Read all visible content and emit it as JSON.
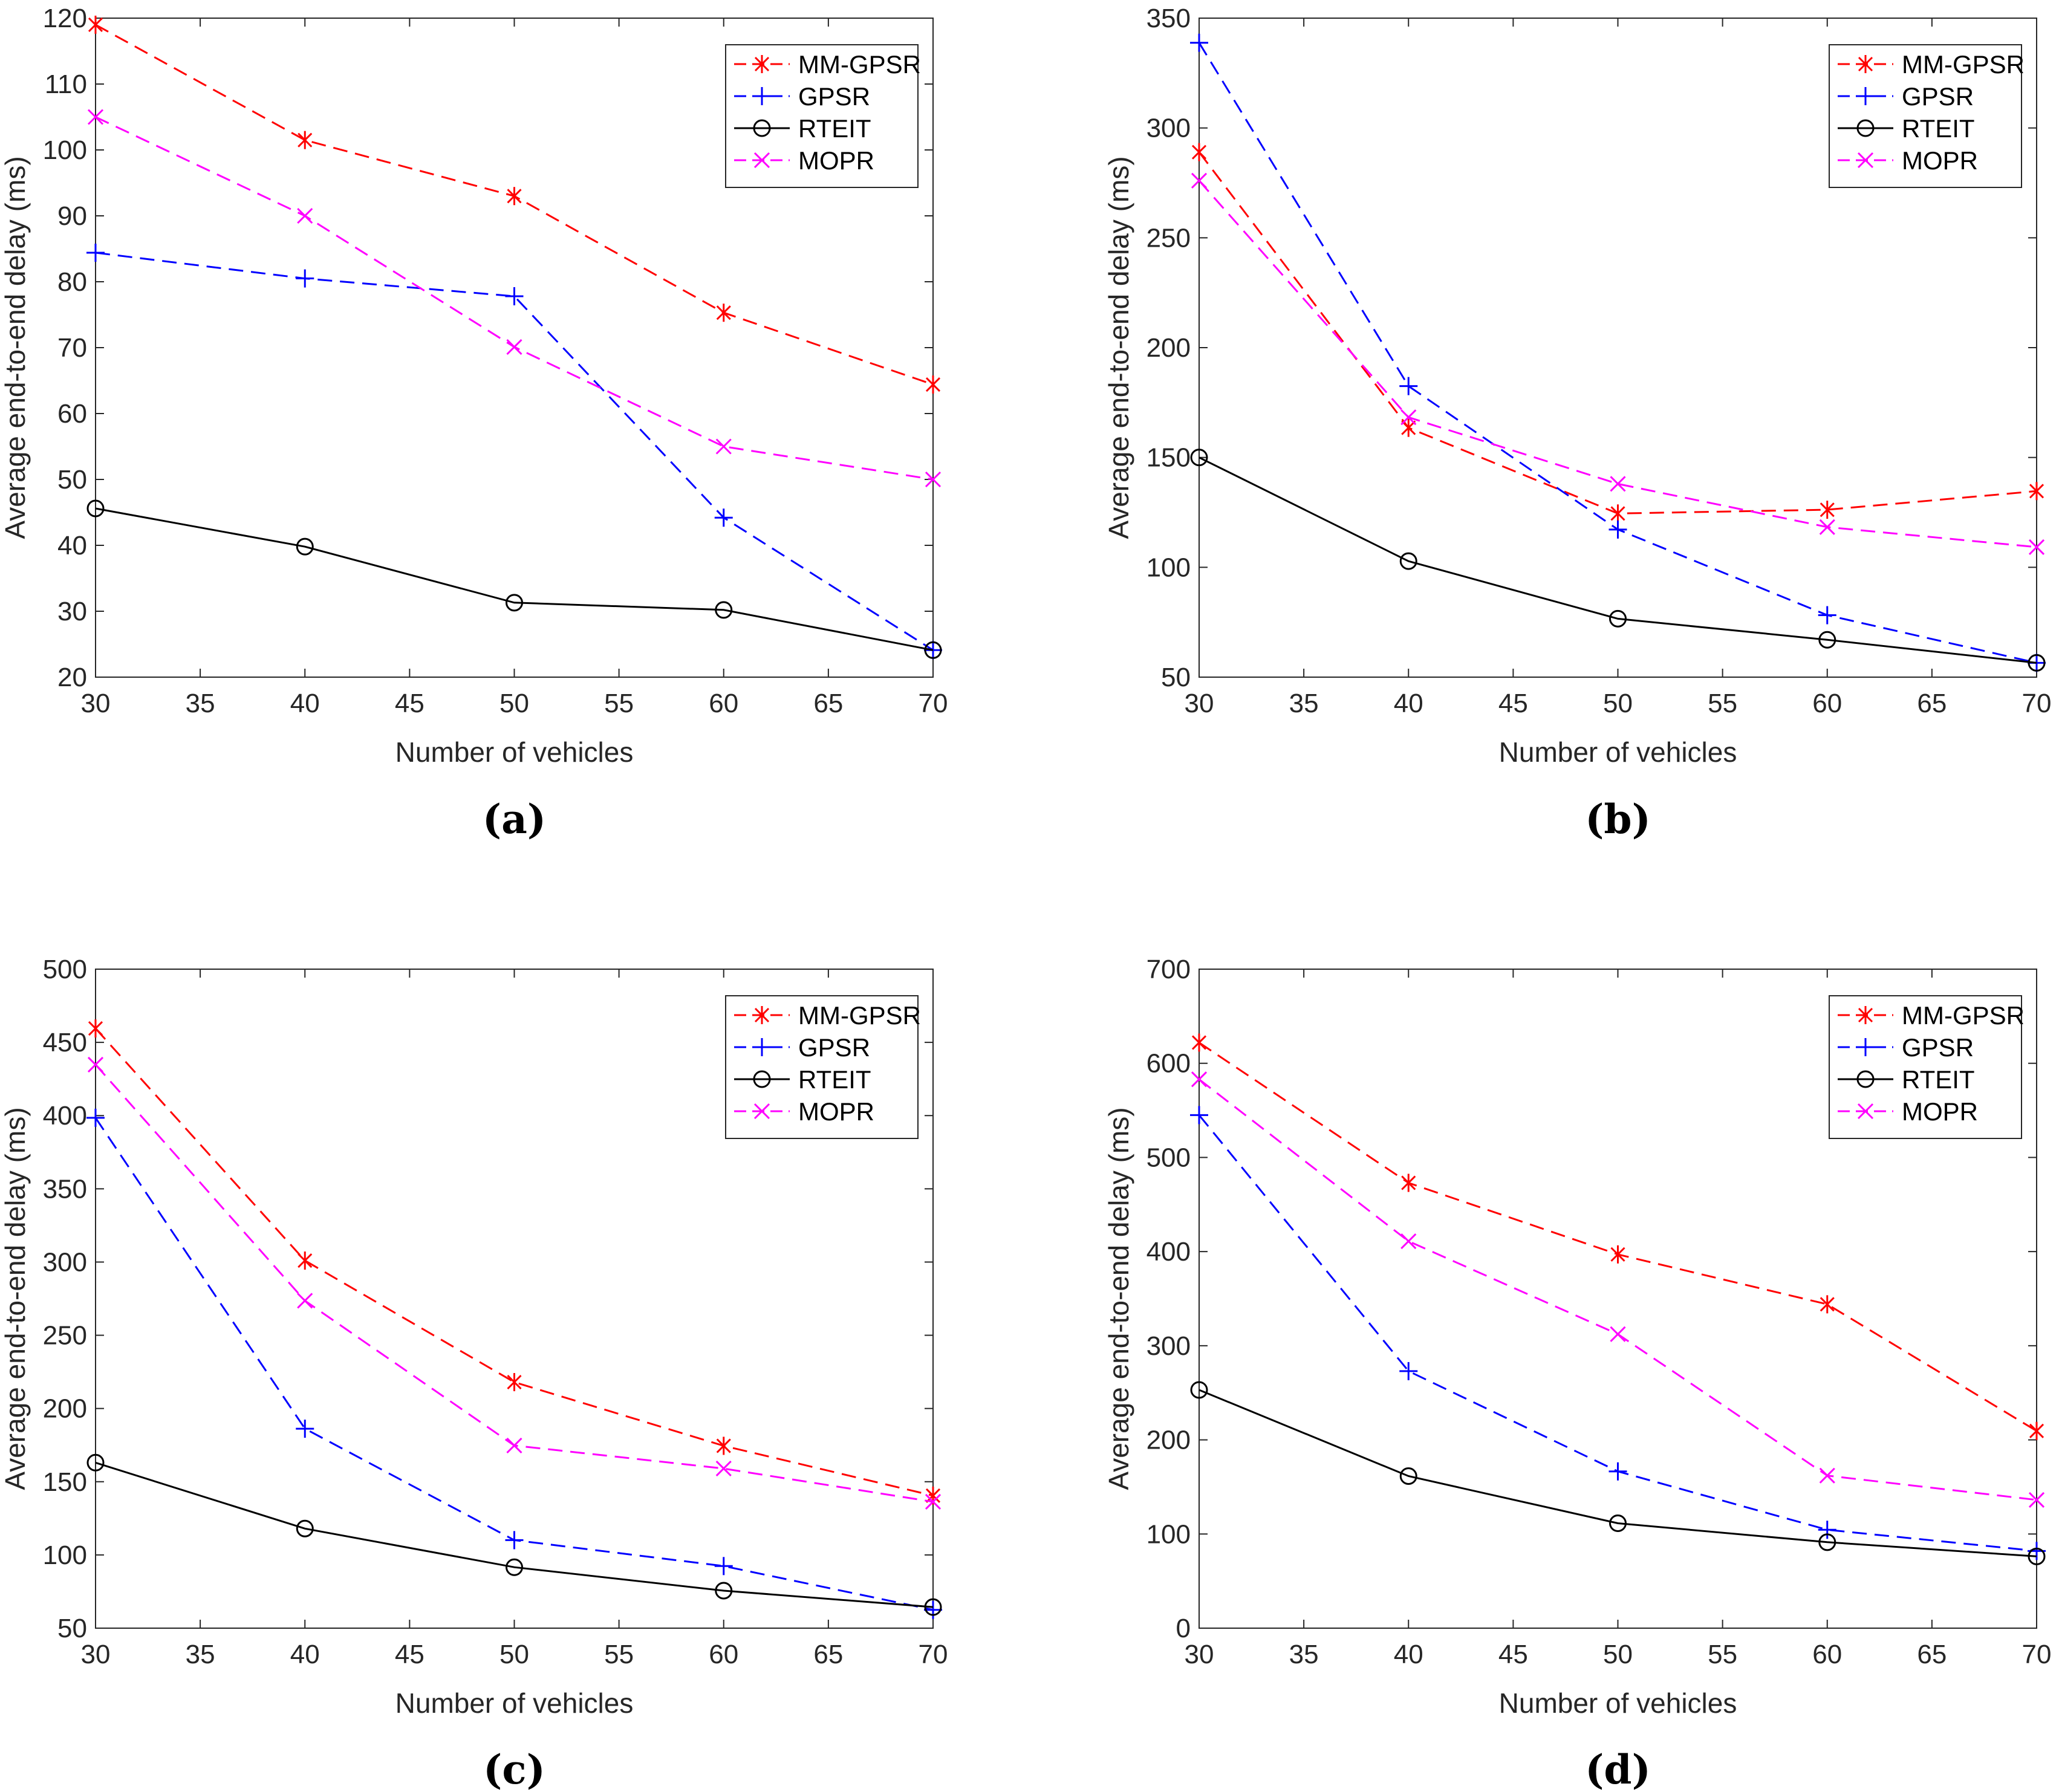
{
  "chart_data": [
    {
      "type": "line",
      "caption": "(a)",
      "xlabel": "Number of vehicles",
      "ylabel": "Average end-to-end delay (ms)",
      "xlim": [
        30,
        70
      ],
      "ylim": [
        20,
        120
      ],
      "xticks": [
        30,
        35,
        40,
        45,
        50,
        55,
        60,
        65,
        70
      ],
      "yticks": [
        20,
        30,
        40,
        50,
        60,
        70,
        80,
        90,
        100,
        110,
        120
      ],
      "legend_position": "top-right",
      "grid": false,
      "x": [
        30,
        40,
        50,
        60,
        70
      ],
      "series": [
        {
          "name": "MM-GPSR",
          "values": [
            119,
            101.5,
            93,
            75.3,
            64.4
          ],
          "color": "#ff0000",
          "dash": "dashed",
          "marker": "asterisk"
        },
        {
          "name": "GPSR",
          "values": [
            84.4,
            80.5,
            77.8,
            44.2,
            24.1
          ],
          "color": "#0000ff",
          "dash": "dashed",
          "marker": "plus"
        },
        {
          "name": "RTEIT",
          "values": [
            45.6,
            39.8,
            31.3,
            30.2,
            24.1
          ],
          "color": "#000000",
          "dash": "solid",
          "marker": "circle"
        },
        {
          "name": "MOPR",
          "values": [
            105,
            90,
            70.1,
            55,
            50
          ],
          "color": "#ff00ff",
          "dash": "dashed",
          "marker": "cross"
        }
      ]
    },
    {
      "type": "line",
      "caption": "(b)",
      "xlabel": "Number of vehicles",
      "ylabel": "Average end-to-end delay (ms)",
      "xlim": [
        30,
        70
      ],
      "ylim": [
        50,
        350
      ],
      "xticks": [
        30,
        35,
        40,
        45,
        50,
        55,
        60,
        65,
        70
      ],
      "yticks": [
        50,
        100,
        150,
        200,
        250,
        300,
        350
      ],
      "legend_position": "top-right",
      "grid": false,
      "x": [
        30,
        40,
        50,
        60,
        70
      ],
      "series": [
        {
          "name": "MM-GPSR",
          "values": [
            289,
            163.5,
            124.5,
            126.2,
            134.7
          ],
          "color": "#ff0000",
          "dash": "dashed",
          "marker": "asterisk"
        },
        {
          "name": "GPSR",
          "values": [
            338.8,
            182.5,
            117.2,
            78.2,
            56.5
          ],
          "color": "#0000ff",
          "dash": "dashed",
          "marker": "plus"
        },
        {
          "name": "RTEIT",
          "values": [
            150,
            102.8,
            76.6,
            67,
            56.5
          ],
          "color": "#000000",
          "dash": "solid",
          "marker": "circle"
        },
        {
          "name": "MOPR",
          "values": [
            276,
            168.3,
            138,
            118.3,
            109.2
          ],
          "color": "#ff00ff",
          "dash": "dashed",
          "marker": "cross"
        }
      ]
    },
    {
      "type": "line",
      "caption": "(c)",
      "xlabel": "Number of vehicles",
      "ylabel": "Average end-to-end delay (ms)",
      "xlim": [
        30,
        70
      ],
      "ylim": [
        50,
        500
      ],
      "xticks": [
        30,
        35,
        40,
        45,
        50,
        55,
        60,
        65,
        70
      ],
      "yticks": [
        50,
        100,
        150,
        200,
        250,
        300,
        350,
        400,
        450,
        500
      ],
      "legend_position": "top-right",
      "grid": false,
      "x": [
        30,
        40,
        50,
        60,
        70
      ],
      "series": [
        {
          "name": "MM-GPSR",
          "values": [
            459.5,
            301,
            218,
            174.5,
            140.5
          ],
          "color": "#ff0000",
          "dash": "dashed",
          "marker": "asterisk"
        },
        {
          "name": "GPSR",
          "values": [
            398.5,
            186.2,
            110.1,
            92.4,
            62.5
          ],
          "color": "#0000ff",
          "dash": "dashed",
          "marker": "plus"
        },
        {
          "name": "RTEIT",
          "values": [
            163,
            118,
            91.6,
            75.6,
            64.4
          ],
          "color": "#000000",
          "dash": "solid",
          "marker": "circle"
        },
        {
          "name": "MOPR",
          "values": [
            434.8,
            273.6,
            174.7,
            159,
            136.3
          ],
          "color": "#ff00ff",
          "dash": "dashed",
          "marker": "cross"
        }
      ]
    },
    {
      "type": "line",
      "caption": "(d)",
      "xlabel": "Number of vehicles",
      "ylabel": "Average end-to-end delay (ms)",
      "xlim": [
        30,
        70
      ],
      "ylim": [
        0,
        700
      ],
      "xticks": [
        30,
        35,
        40,
        45,
        50,
        55,
        60,
        65,
        70
      ],
      "yticks": [
        0,
        100,
        200,
        300,
        400,
        500,
        600,
        700
      ],
      "legend_position": "top-right",
      "grid": false,
      "x": [
        30,
        40,
        50,
        60,
        70
      ],
      "series": [
        {
          "name": "MM-GPSR",
          "values": [
            622,
            473,
            397,
            344,
            209.5
          ],
          "color": "#ff0000",
          "dash": "dashed",
          "marker": "asterisk"
        },
        {
          "name": "GPSR",
          "values": [
            545,
            273,
            166.5,
            104.5,
            82
          ],
          "color": "#0000ff",
          "dash": "dashed",
          "marker": "plus"
        },
        {
          "name": "RTEIT",
          "values": [
            253,
            161.5,
            111.4,
            91.3,
            76.2
          ],
          "color": "#000000",
          "dash": "solid",
          "marker": "circle"
        },
        {
          "name": "MOPR",
          "values": [
            583,
            411,
            312.3,
            162,
            136.2
          ],
          "color": "#ff00ff",
          "dash": "dashed",
          "marker": "cross"
        }
      ]
    }
  ]
}
